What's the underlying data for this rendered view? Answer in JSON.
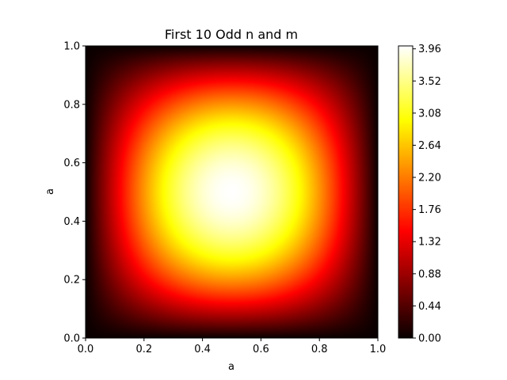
{
  "chart_data": {
    "type": "heatmap",
    "title": "First 10 Odd n and m",
    "xlabel": "a",
    "ylabel": "a",
    "xlim": [
      0.0,
      1.0
    ],
    "ylim": [
      0.0,
      1.0
    ],
    "x_ticks": [
      "0.0",
      "0.2",
      "0.4",
      "0.6",
      "0.8",
      "1.0"
    ],
    "y_ticks": [
      "0.0",
      "0.2",
      "0.4",
      "0.6",
      "0.8",
      "1.0"
    ],
    "colormap": "hot",
    "colorbar": {
      "range": [
        0.0,
        4.0
      ],
      "ticks": [
        "0.00",
        "0.44",
        "0.88",
        "1.32",
        "1.76",
        "2.20",
        "2.64",
        "3.08",
        "3.52",
        "3.96"
      ]
    },
    "field": {
      "description": "sin(pi x) * sin(pi y) scaled",
      "peak_value": 4.0,
      "peak_location": [
        0.5,
        0.5
      ]
    },
    "grid": false
  }
}
